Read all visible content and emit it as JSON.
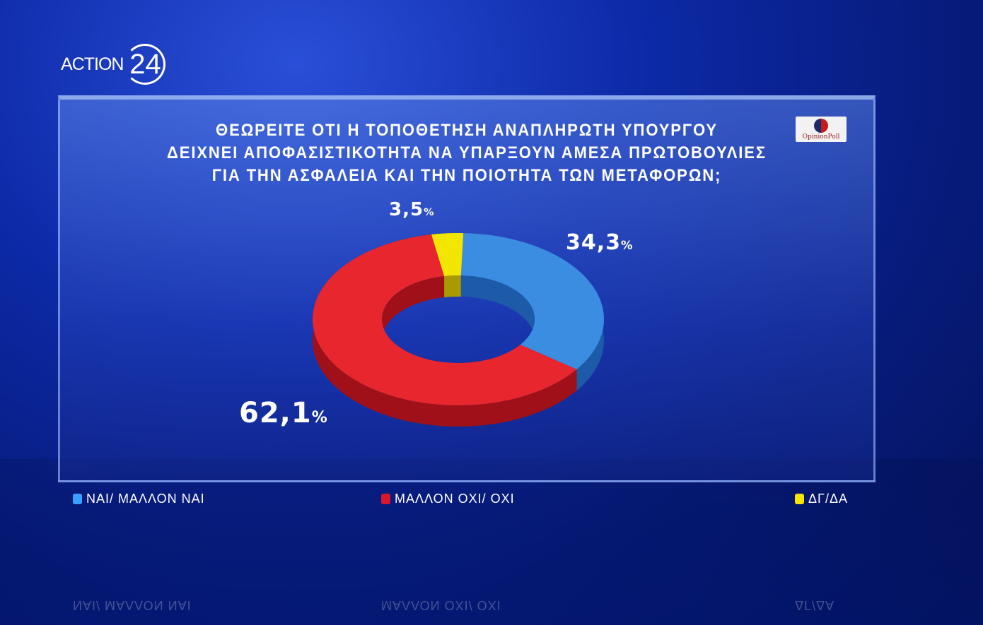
{
  "logo": {
    "text": "ACTION",
    "number": "24"
  },
  "title": [
    "ΘΕΩΡΕΙΤΕ ΟΤΙ Η ΤΟΠΟΘΕΤΗΣΗ ΑΝΑΠΛΗΡΩΤΗ ΥΠΟΥΡΓΟΥ",
    "ΔΕΙΧΝΕΙ ΑΠΟΦΑΣΙΣΤΙΚΟΤΗΤΑ ΝΑ ΥΠΑΡΞΟΥΝ ΑΜΕΣΑ ΠΡΩΤΟΒΟΥΛΙΕΣ",
    "ΓΙΑ ΤΗΝ ΑΣΦΑΛΕΙΑ ΚΑΙ ΤΗΝ ΠΟΙΟΤΗΤΑ ΤΩΝ ΜΕΤΑΦΟΡΩΝ;"
  ],
  "source_logo": "OpinionPoll",
  "chart_data": {
    "type": "pie",
    "style": "3d-donut",
    "categories": [
      "ΝΑΙ/ ΜΑΛΛΟΝ ΝΑΙ",
      "ΜΑΛΛΟΝ ΟΧΙ/ ΟΧΙ",
      "ΔΓ/ΔΑ"
    ],
    "values": [
      34.3,
      62.1,
      3.5
    ],
    "labels": [
      "34,3",
      "62,1",
      "3,5"
    ],
    "unit": "%",
    "colors": [
      "#3a8de0",
      "#e8262e",
      "#f2e600"
    ],
    "legend_position": "bottom"
  }
}
